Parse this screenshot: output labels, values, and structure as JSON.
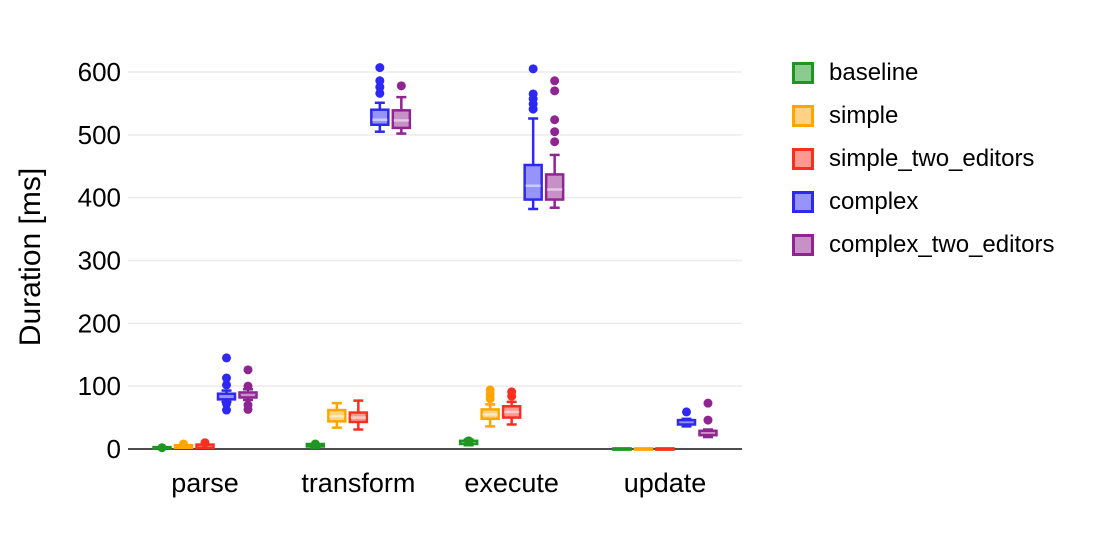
{
  "figure": {
    "background": "#ffffff"
  },
  "chart_data": {
    "type": "boxplot",
    "title": "",
    "xlabel": "",
    "ylabel": "Duration [ms]",
    "categories": [
      "parse",
      "transform",
      "execute",
      "update"
    ],
    "yticks": [
      0,
      100,
      200,
      300,
      400,
      500,
      600
    ],
    "ylim": [
      -20,
      630
    ],
    "grid": "horizontal-light",
    "legend_position": "right",
    "colors": {
      "gridline": "#ebebeb",
      "zero_axis": "#4d4d4d",
      "tick_text": "#000000"
    },
    "series": [
      {
        "name": "baseline",
        "color": "#1e9621",
        "fill": "#8ccb8e",
        "median_color": "#c8e6c9",
        "boxes": [
          {
            "low": 0,
            "q1": 1,
            "median": 2,
            "q3": 3,
            "high": 4,
            "outliers": [
              2
            ]
          },
          {
            "low": 2,
            "q1": 4,
            "median": 6,
            "q3": 8,
            "high": 9,
            "outliers": [
              8
            ]
          },
          {
            "low": 6,
            "q1": 8,
            "median": 11,
            "q3": 13,
            "high": 15,
            "outliers": [
              13
            ]
          },
          {
            "low": -1,
            "q1": -1,
            "median": 0,
            "q3": 1,
            "high": 1,
            "outliers": []
          }
        ]
      },
      {
        "name": "simple",
        "color": "#ffa502",
        "fill": "#ffd285",
        "median_color": "#ffe9c2",
        "boxes": [
          {
            "low": 1,
            "q1": 2,
            "median": 4,
            "q3": 6,
            "high": 7,
            "outliers": [
              8
            ]
          },
          {
            "low": 34,
            "q1": 44,
            "median": 52,
            "q3": 62,
            "high": 73,
            "outliers": []
          },
          {
            "low": 36,
            "q1": 48,
            "median": 55,
            "q3": 63,
            "high": 71,
            "outliers": [
              80,
              87,
              94
            ]
          },
          {
            "low": -1,
            "q1": -1,
            "median": 0,
            "q3": 1,
            "high": 1,
            "outliers": []
          }
        ]
      },
      {
        "name": "simple_two_editors",
        "color": "#f9301f",
        "fill": "#fc9a92",
        "median_color": "#fdccc8",
        "boxes": [
          {
            "low": 1,
            "q1": 2,
            "median": 4,
            "q3": 7,
            "high": 8,
            "outliers": [
              10
            ]
          },
          {
            "low": 31,
            "q1": 43,
            "median": 50,
            "q3": 58,
            "high": 77,
            "outliers": []
          },
          {
            "low": 39,
            "q1": 50,
            "median": 59,
            "q3": 68,
            "high": 75,
            "outliers": [
              84,
              91
            ]
          },
          {
            "low": -1,
            "q1": -1,
            "median": 0,
            "q3": 1,
            "high": 1,
            "outliers": []
          }
        ]
      },
      {
        "name": "complex",
        "color": "#2d28f2",
        "fill": "#9794f9",
        "median_color": "#cbcafc",
        "boxes": [
          {
            "low": 75,
            "q1": 79,
            "median": 83,
            "q3": 88,
            "high": 93,
            "outliers": [
              62,
              72,
              102,
              113,
              145
            ]
          },
          {
            "low": 505,
            "q1": 516,
            "median": 524,
            "q3": 540,
            "high": 551,
            "outliers": [
              566,
              576,
              586,
              607
            ]
          },
          {
            "low": 382,
            "q1": 397,
            "median": 419,
            "q3": 452,
            "high": 526,
            "outliers": [
              541,
              549,
              557,
              565,
              605
            ]
          },
          {
            "low": 36,
            "q1": 39,
            "median": 42,
            "q3": 46,
            "high": 48,
            "outliers": [
              59
            ]
          }
        ]
      },
      {
        "name": "complex_two_editors",
        "color": "#8e2591",
        "fill": "#c791c8",
        "median_color": "#e3c8e4",
        "boxes": [
          {
            "low": 78,
            "q1": 82,
            "median": 86,
            "q3": 90,
            "high": 95,
            "outliers": [
              63,
              70,
              100,
              126
            ]
          },
          {
            "low": 502,
            "q1": 511,
            "median": 523,
            "q3": 539,
            "high": 560,
            "outliers": [
              578
            ]
          },
          {
            "low": 384,
            "q1": 397,
            "median": 413,
            "q3": 437,
            "high": 468,
            "outliers": [
              489,
              505,
              524,
              570,
              586
            ]
          },
          {
            "low": 19,
            "q1": 22,
            "median": 25,
            "q3": 29,
            "high": 31,
            "outliers": [
              46,
              73
            ]
          }
        ]
      }
    ]
  }
}
